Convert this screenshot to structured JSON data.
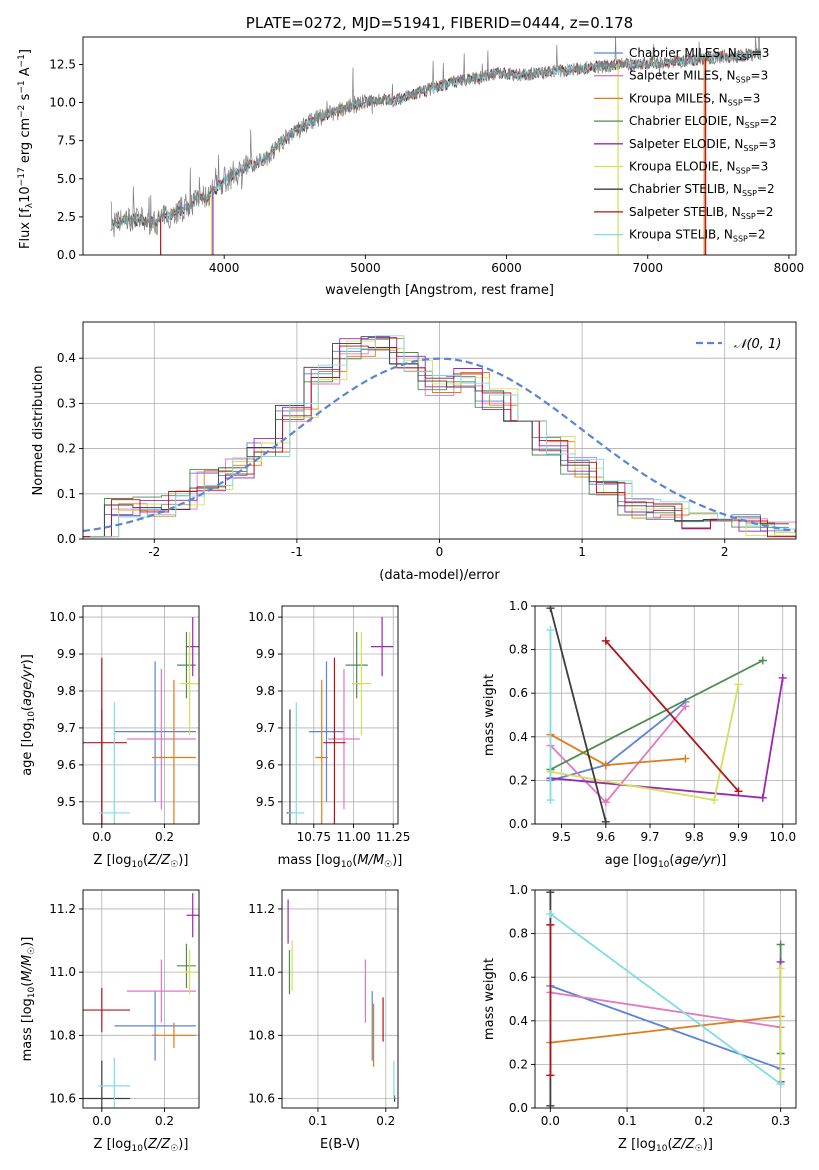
{
  "chart_data": [
    {
      "type": "line",
      "title": "PLATE=0272, MJD=51941, FIBERID=0444, z=0.178",
      "xlabel": "wavelength [Angstrom, rest frame]",
      "ylabel": "Flux [f_λ 10^-17 erg cm^-2 s^-1 A^-1]",
      "xlim": [
        3000,
        8050
      ],
      "ylim": [
        0,
        14.3
      ],
      "xticks": [
        4000,
        5000,
        6000,
        7000,
        8000
      ],
      "yticks": [
        0.0,
        2.5,
        5.0,
        7.5,
        10.0,
        12.5
      ],
      "ytick_labels": [
        "0.0",
        "2.5",
        "5.0",
        "7.5",
        "10.0",
        "12.5"
      ],
      "grid": false,
      "legend_position": "upper-right",
      "spectrum_color": "#7f7f7f",
      "spectrum_anchor": {
        "wavelength": [
          3200,
          3300,
          3400,
          3500,
          3600,
          3700,
          3800,
          3900,
          4000,
          4100,
          4200,
          4300,
          4400,
          4500,
          4600,
          4700,
          4800,
          4900,
          5000,
          5100,
          5200,
          5300,
          5400,
          5500,
          5600,
          5700,
          5800,
          5900,
          6000,
          6100,
          6200,
          6300,
          6400,
          6500,
          6600,
          6700,
          6800,
          6900,
          7000,
          7100,
          7200,
          7300,
          7400,
          7500,
          7600,
          7700,
          7800
        ],
        "flux": [
          1.9,
          2.3,
          2.3,
          2.1,
          2.6,
          3.0,
          3.6,
          3.9,
          4.9,
          5.5,
          5.9,
          6.4,
          7.4,
          8.1,
          8.7,
          9.1,
          9.4,
          9.8,
          10.0,
          10.2,
          10.1,
          10.4,
          10.7,
          11.0,
          11.3,
          11.5,
          11.6,
          11.9,
          11.9,
          11.8,
          11.9,
          12.0,
          12.1,
          12.2,
          12.3,
          12.4,
          12.5,
          12.5,
          12.6,
          12.6,
          12.7,
          12.8,
          12.9,
          13.0,
          13.0,
          13.1,
          13.2
        ]
      },
      "series": [
        {
          "name": "Chabrier MILES, N_SSP=3",
          "color": "#5b84d6"
        },
        {
          "name": "Salpeter MILES, N_SSP=3",
          "color": "#e377c2"
        },
        {
          "name": "Kroupa MILES, N_SSP=3",
          "color": "#e07b1a"
        },
        {
          "name": "Chabrier ELODIE, N_SSP=2",
          "color": "#4c8c4c"
        },
        {
          "name": "Salpeter ELODIE, N_SSP=3",
          "color": "#9b27b0"
        },
        {
          "name": "Kroupa ELODIE, N_SSP=3",
          "color": "#d4e05a"
        },
        {
          "name": "Chabrier STELIB, N_SSP=2",
          "color": "#3d3d3d"
        },
        {
          "name": "Salpeter STELIB, N_SSP=2",
          "color": "#b2141b"
        },
        {
          "name": "Kroupa STELIB, N_SSP=2",
          "color": "#80dde3"
        }
      ],
      "drop_lines": [
        {
          "series": 7,
          "wavelength": 3550
        },
        {
          "series": 5,
          "wavelength": 3910
        },
        {
          "series": 4,
          "wavelength": 3920
        },
        {
          "series": 5,
          "wavelength": 6790
        },
        {
          "series": 7,
          "wavelength": 7410
        },
        {
          "series": 2,
          "wavelength": 7400
        }
      ]
    },
    {
      "type": "step",
      "xlabel": "(data-model)/error",
      "ylabel": "Normed distribution",
      "xlim": [
        -2.5,
        2.5
      ],
      "ylim": [
        0,
        0.48
      ],
      "xticks": [
        -2,
        -1,
        0,
        1,
        2
      ],
      "yticks": [
        0.0,
        0.1,
        0.2,
        0.3,
        0.4
      ],
      "ytick_labels": [
        "0.0",
        "0.1",
        "0.2",
        "0.3",
        "0.4"
      ],
      "grid": true,
      "legend_position": "upper-right",
      "reference_curve": {
        "name": "𝒩(0, 1)",
        "color": "#5b84d6",
        "style": "dashed"
      },
      "bin_centers": [
        -2.4,
        -2.2,
        -2.0,
        -1.8,
        -1.6,
        -1.4,
        -1.2,
        -1.0,
        -0.8,
        -0.6,
        -0.4,
        -0.2,
        0.0,
        0.2,
        0.4,
        0.6,
        0.8,
        1.0,
        1.2,
        1.4,
        1.6,
        1.8,
        2.0,
        2.2,
        2.4
      ],
      "histogram_base": [
        0.03,
        0.065,
        0.075,
        0.085,
        0.13,
        0.16,
        0.2,
        0.28,
        0.36,
        0.42,
        0.43,
        0.39,
        0.34,
        0.36,
        0.31,
        0.26,
        0.21,
        0.16,
        0.11,
        0.07,
        0.06,
        0.045,
        0.04,
        0.03,
        0.02
      ],
      "series_colors": [
        "#5b84d6",
        "#e377c2",
        "#e07b1a",
        "#4c8c4c",
        "#9b27b0",
        "#d4e05a",
        "#3d3d3d",
        "#b2141b",
        "#80dde3"
      ]
    },
    {
      "type": "scatter",
      "xlabel": "Z [log10(Z/Z☉)]",
      "ylabel": "age  [log10(age/yr)]",
      "xlim": [
        -0.06,
        0.31
      ],
      "ylim": [
        9.44,
        10.03
      ],
      "xticks": [
        0.0,
        0.2
      ],
      "xtick_labels": [
        "0.0",
        "0.2"
      ],
      "yticks": [
        9.5,
        9.6,
        9.7,
        9.8,
        9.9,
        10.0
      ],
      "ytick_labels": [
        "9.5",
        "9.6",
        "9.7",
        "9.8",
        "9.9",
        "10.0"
      ],
      "grid": true,
      "points": [
        {
          "x": 0.17,
          "y": 9.69,
          "xerr": 0.13,
          "yerr": 0.19,
          "color": "#5b84d6"
        },
        {
          "x": 0.19,
          "y": 9.67,
          "xerr": 0.11,
          "yerr": 0.19,
          "color": "#e377c2"
        },
        {
          "x": 0.23,
          "y": 9.62,
          "xerr": 0.07,
          "yerr": 0.21,
          "color": "#e07b1a"
        },
        {
          "x": 0.27,
          "y": 9.87,
          "xerr": 0.03,
          "yerr": 0.09,
          "color": "#4c8c4c"
        },
        {
          "x": 0.29,
          "y": 9.92,
          "xerr": 0.02,
          "yerr": 0.08,
          "color": "#9b27b0"
        },
        {
          "x": 0.28,
          "y": 9.82,
          "xerr": 0.03,
          "yerr": 0.14,
          "color": "#d4e05a"
        },
        {
          "x": 0.0,
          "y": 9.47,
          "xerr": 0.0,
          "yerr": 0.28,
          "color": "#3d3d3d"
        },
        {
          "x": 0.0,
          "y": 9.66,
          "xerr": 0.08,
          "yerr": 0.23,
          "color": "#b2141b"
        },
        {
          "x": 0.04,
          "y": 9.47,
          "xerr": 0.05,
          "yerr": 0.3,
          "color": "#80dde3"
        }
      ]
    },
    {
      "type": "scatter",
      "xlabel": "mass [log10(M/M☉)]",
      "xlim": [
        10.55,
        11.28
      ],
      "ylim": [
        9.44,
        10.03
      ],
      "xticks": [
        10.75,
        11.0,
        11.25
      ],
      "xtick_labels": [
        "10.75",
        "11.00",
        "11.25"
      ],
      "yticks": [
        9.5,
        9.6,
        9.7,
        9.8,
        9.9,
        10.0
      ],
      "ytick_labels": [
        "9.5",
        "9.6",
        "9.7",
        "9.8",
        "9.9",
        "10.0"
      ],
      "grid": true,
      "points": [
        {
          "x": 10.83,
          "y": 9.69,
          "xerr": 0.11,
          "yerr": 0.19,
          "color": "#5b84d6"
        },
        {
          "x": 10.94,
          "y": 9.67,
          "xerr": 0.1,
          "yerr": 0.19,
          "color": "#e377c2"
        },
        {
          "x": 10.8,
          "y": 9.62,
          "xerr": 0.04,
          "yerr": 0.21,
          "color": "#e07b1a"
        },
        {
          "x": 11.02,
          "y": 9.87,
          "xerr": 0.07,
          "yerr": 0.09,
          "color": "#4c8c4c"
        },
        {
          "x": 11.18,
          "y": 9.92,
          "xerr": 0.07,
          "yerr": 0.08,
          "color": "#9b27b0"
        },
        {
          "x": 11.05,
          "y": 9.82,
          "xerr": 0.06,
          "yerr": 0.14,
          "color": "#d4e05a"
        },
        {
          "x": 10.6,
          "y": 9.47,
          "xerr": 0.02,
          "yerr": 0.28,
          "color": "#3d3d3d"
        },
        {
          "x": 10.88,
          "y": 9.66,
          "xerr": 0.07,
          "yerr": 0.23,
          "color": "#b2141b"
        },
        {
          "x": 10.64,
          "y": 9.47,
          "xerr": 0.05,
          "yerr": 0.3,
          "color": "#80dde3"
        }
      ]
    },
    {
      "type": "line",
      "xlabel": "age  [log10(age/yr)]",
      "ylabel": "mass weight",
      "xlim": [
        9.44,
        10.03
      ],
      "ylim": [
        0.0,
        1.0
      ],
      "xticks": [
        9.5,
        9.6,
        9.7,
        9.8,
        9.9,
        10.0
      ],
      "xtick_labels": [
        "9.5",
        "9.6",
        "9.7",
        "9.8",
        "9.9",
        "10.0"
      ],
      "yticks": [
        0.0,
        0.2,
        0.4,
        0.6,
        0.8,
        1.0
      ],
      "ytick_labels": [
        "0.0",
        "0.2",
        "0.4",
        "0.6",
        "0.8",
        "1.0"
      ],
      "grid": true,
      "series": [
        {
          "color": "#5b84d6",
          "x": [
            9.475,
            9.6,
            9.78
          ],
          "y": [
            0.2,
            0.27,
            0.56
          ]
        },
        {
          "color": "#e377c2",
          "x": [
            9.475,
            9.6,
            9.78
          ],
          "y": [
            0.36,
            0.1,
            0.54
          ]
        },
        {
          "color": "#e07b1a",
          "x": [
            9.475,
            9.6,
            9.78
          ],
          "y": [
            0.41,
            0.27,
            0.3
          ]
        },
        {
          "color": "#4c8c4c",
          "x": [
            9.475,
            9.955
          ],
          "y": [
            0.25,
            0.75
          ]
        },
        {
          "color": "#9b27b0",
          "x": [
            9.475,
            9.955,
            10.0
          ],
          "y": [
            0.21,
            0.12,
            0.67
          ]
        },
        {
          "color": "#d4e05a",
          "x": [
            9.475,
            9.845,
            9.9
          ],
          "y": [
            0.24,
            0.11,
            0.64
          ]
        },
        {
          "color": "#3d3d3d",
          "x": [
            9.475,
            9.6
          ],
          "y": [
            0.99,
            0.01
          ]
        },
        {
          "color": "#b2141b",
          "x": [
            9.6,
            9.9
          ],
          "y": [
            0.84,
            0.15
          ]
        },
        {
          "color": "#80dde3",
          "x": [
            9.475,
            9.475
          ],
          "y": [
            0.89,
            0.11
          ]
        }
      ]
    },
    {
      "type": "scatter",
      "xlabel": "Z [log10(Z/Z☉)]",
      "ylabel": "mass [log10(M/M☉)]",
      "xlim": [
        -0.06,
        0.31
      ],
      "ylim": [
        10.57,
        11.26
      ],
      "xticks": [
        0.0,
        0.2
      ],
      "xtick_labels": [
        "0.0",
        "0.2"
      ],
      "yticks": [
        10.6,
        10.8,
        11.0,
        11.2
      ],
      "ytick_labels": [
        "10.6",
        "10.8",
        "11.0",
        "11.2"
      ],
      "grid": true,
      "points": [
        {
          "x": 0.17,
          "y": 10.83,
          "xerr": 0.13,
          "yerr": 0.11,
          "color": "#5b84d6"
        },
        {
          "x": 0.19,
          "y": 10.94,
          "xerr": 0.11,
          "yerr": 0.1,
          "color": "#e377c2"
        },
        {
          "x": 0.23,
          "y": 10.8,
          "xerr": 0.07,
          "yerr": 0.04,
          "color": "#e07b1a"
        },
        {
          "x": 0.27,
          "y": 11.02,
          "xerr": 0.03,
          "yerr": 0.07,
          "color": "#4c8c4c"
        },
        {
          "x": 0.29,
          "y": 11.18,
          "xerr": 0.02,
          "yerr": 0.07,
          "color": "#9b27b0"
        },
        {
          "x": 0.28,
          "y": 11.0,
          "xerr": 0.03,
          "yerr": 0.07,
          "color": "#d4e05a"
        },
        {
          "x": 0.0,
          "y": 10.6,
          "xerr": 0.09,
          "yerr": 0.12,
          "color": "#3d3d3d"
        },
        {
          "x": 0.0,
          "y": 10.88,
          "xerr": 0.09,
          "yerr": 0.07,
          "color": "#b2141b"
        },
        {
          "x": 0.04,
          "y": 10.64,
          "xerr": 0.05,
          "yerr": 0.09,
          "color": "#80dde3"
        }
      ]
    },
    {
      "type": "scatter",
      "xlabel": "E(B-V)",
      "xlim": [
        0.047,
        0.218
      ],
      "ylim": [
        10.57,
        11.26
      ],
      "xticks": [
        0.1,
        0.2
      ],
      "xtick_labels": [
        "0.1",
        "0.2"
      ],
      "yticks": [
        10.6,
        10.8,
        11.0,
        11.2
      ],
      "ytick_labels": [
        "10.6",
        "10.8",
        "11.0",
        "11.2"
      ],
      "grid": true,
      "points": [
        {
          "x": 0.18,
          "y": 10.83,
          "xerr": 0.0,
          "yerr": 0.11,
          "color": "#5b84d6"
        },
        {
          "x": 0.17,
          "y": 10.94,
          "xerr": 0.0,
          "yerr": 0.1,
          "color": "#e377c2"
        },
        {
          "x": 0.182,
          "y": 10.8,
          "xerr": 0.0,
          "yerr": 0.1,
          "color": "#e07b1a"
        },
        {
          "x": 0.058,
          "y": 11.0,
          "xerr": 0.0,
          "yerr": 0.07,
          "color": "#4c8c4c"
        },
        {
          "x": 0.056,
          "y": 11.16,
          "xerr": 0.0,
          "yerr": 0.07,
          "color": "#9b27b0"
        },
        {
          "x": 0.062,
          "y": 11.02,
          "xerr": 0.0,
          "yerr": 0.08,
          "color": "#d4e05a"
        },
        {
          "x": 0.213,
          "y": 10.6,
          "xerr": 0.0,
          "yerr": 0.01,
          "color": "#3d3d3d"
        },
        {
          "x": 0.196,
          "y": 10.85,
          "xerr": 0.0,
          "yerr": 0.07,
          "color": "#b2141b"
        },
        {
          "x": 0.212,
          "y": 10.66,
          "xerr": 0.0,
          "yerr": 0.06,
          "color": "#80dde3"
        }
      ]
    },
    {
      "type": "line",
      "xlabel": "Z [log10(Z/Z☉)]",
      "ylabel": "mass weight",
      "xlim": [
        -0.02,
        0.32
      ],
      "ylim": [
        0.0,
        1.0
      ],
      "xticks": [
        0.0,
        0.1,
        0.2,
        0.3
      ],
      "xtick_labels": [
        "0.0",
        "0.1",
        "0.2",
        "0.3"
      ],
      "yticks": [
        0.0,
        0.2,
        0.4,
        0.6,
        0.8,
        1.0
      ],
      "ytick_labels": [
        "0.0",
        "0.2",
        "0.4",
        "0.6",
        "0.8",
        "1.0"
      ],
      "grid": true,
      "series": [
        {
          "color": "#5b84d6",
          "x": [
            0.0,
            0.3
          ],
          "y": [
            0.56,
            0.18
          ]
        },
        {
          "color": "#e377c2",
          "x": [
            0.0,
            0.3
          ],
          "y": [
            0.53,
            0.37
          ]
        },
        {
          "color": "#e07b1a",
          "x": [
            0.0,
            0.3
          ],
          "y": [
            0.3,
            0.42
          ]
        },
        {
          "color": "#4c8c4c",
          "x": [
            0.3,
            0.3
          ],
          "y": [
            0.25,
            0.75
          ]
        },
        {
          "color": "#9b27b0",
          "x": [
            0.3,
            0.3
          ],
          "y": [
            0.12,
            0.67
          ]
        },
        {
          "color": "#d4e05a",
          "x": [
            0.3,
            0.3
          ],
          "y": [
            0.11,
            0.64
          ]
        },
        {
          "color": "#3d3d3d",
          "x": [
            0.0,
            0.0
          ],
          "y": [
            0.01,
            0.99
          ]
        },
        {
          "color": "#b2141b",
          "x": [
            0.0,
            0.0
          ],
          "y": [
            0.15,
            0.84
          ]
        },
        {
          "color": "#80dde3",
          "x": [
            0.0,
            0.3
          ],
          "y": [
            0.89,
            0.11
          ]
        }
      ]
    }
  ]
}
